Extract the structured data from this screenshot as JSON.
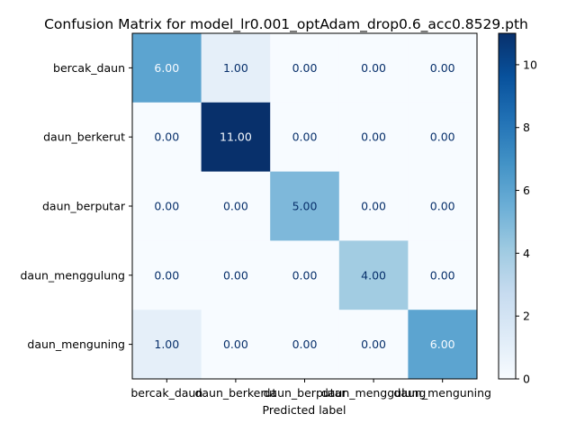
{
  "chart_data": {
    "type": "heatmap",
    "title": "Confusion Matrix for model_lr0.001_optAdam_drop0.6_acc0.8529.pth",
    "xlabel": "Predicted label",
    "ylabel": "",
    "x_categories": [
      "bercak_daun",
      "daun_berkerut",
      "daun_berputar",
      "daun_menggulung",
      "daun_menguning"
    ],
    "y_categories": [
      "bercak_daun",
      "daun_berkerut",
      "daun_berputar",
      "daun_menggulung",
      "daun_menguning"
    ],
    "values": [
      [
        6,
        1,
        0,
        0,
        0
      ],
      [
        0,
        11,
        0,
        0,
        0
      ],
      [
        0,
        0,
        5,
        0,
        0
      ],
      [
        0,
        0,
        0,
        4,
        0
      ],
      [
        1,
        0,
        0,
        0,
        6
      ]
    ],
    "value_labels": [
      [
        "6.00",
        "1.00",
        "0.00",
        "0.00",
        "0.00"
      ],
      [
        "0.00",
        "11.00",
        "0.00",
        "0.00",
        "0.00"
      ],
      [
        "0.00",
        "0.00",
        "5.00",
        "0.00",
        "0.00"
      ],
      [
        "0.00",
        "0.00",
        "0.00",
        "4.00",
        "0.00"
      ],
      [
        "1.00",
        "0.00",
        "0.00",
        "0.00",
        "6.00"
      ]
    ],
    "colormap": "Blues",
    "colorbar": {
      "range": [
        0,
        11
      ],
      "ticks": [
        0,
        2,
        4,
        6,
        8,
        10
      ],
      "tick_labels": [
        "0",
        "2",
        "4",
        "6",
        "8",
        "10"
      ]
    },
    "grid": false
  }
}
